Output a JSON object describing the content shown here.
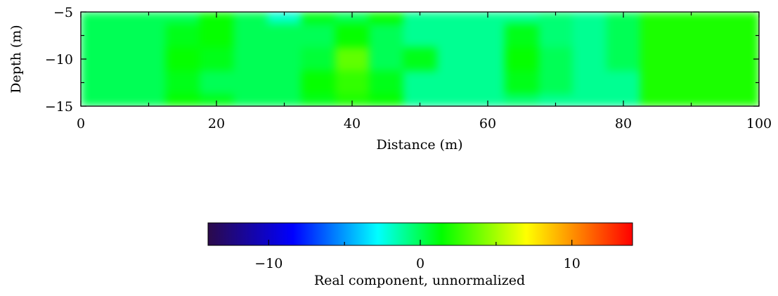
{
  "chart_data": [
    {
      "type": "heatmap",
      "xlabel": "Distance (m)",
      "ylabel": "Depth (m)",
      "xlim": [
        0,
        100
      ],
      "ylim": [
        -15,
        -5
      ],
      "xticks": [
        "0",
        "20",
        "40",
        "60",
        "80",
        "100"
      ],
      "yticks": [
        "-5",
        "-10",
        "-15"
      ],
      "x": [
        0,
        5,
        10,
        15,
        20,
        25,
        30,
        35,
        40,
        45,
        50,
        55,
        60,
        65,
        70,
        75,
        80,
        85,
        90,
        95,
        100
      ],
      "y": [
        -5,
        -7.5,
        -10,
        -12.5,
        -15
      ],
      "z": [
        [
          0,
          0,
          0,
          0,
          1.5,
          0,
          -2,
          1,
          0,
          1.5,
          -1,
          -1,
          -1,
          -1,
          -0.5,
          -1,
          0,
          2,
          2,
          2,
          2
        ],
        [
          0,
          0,
          0,
          1,
          1.5,
          0,
          0,
          0,
          1.5,
          0,
          -1,
          -1,
          -1,
          1,
          -0.5,
          -1,
          0,
          2,
          2,
          2,
          2
        ],
        [
          0,
          0,
          0,
          1.5,
          1,
          0,
          0,
          0.5,
          3.5,
          0,
          1,
          -1,
          -1,
          1.5,
          0,
          -1,
          0,
          2,
          2,
          2,
          2
        ],
        [
          0,
          0,
          0,
          1,
          0,
          0,
          0,
          1.5,
          2.5,
          1,
          -1,
          -1,
          -1,
          1,
          0,
          -1,
          -1,
          2,
          2,
          2,
          2
        ],
        [
          0,
          0,
          0,
          1.5,
          1,
          0,
          0,
          1,
          2,
          1.5,
          -1,
          -1,
          -1,
          -0.5,
          -1,
          -1,
          -1,
          2,
          2,
          2,
          2
        ]
      ]
    },
    {
      "type": "colorbar",
      "label": "Real component, unnormalized",
      "range": [
        -14,
        14
      ],
      "ticks": [
        "-10",
        "0",
        "10"
      ],
      "tick_values": [
        -10,
        0,
        10
      ],
      "colors": [
        "#2b0a4a",
        "#0000ff",
        "#00ffff",
        "#00ff00",
        "#ffff00",
        "#ff0000"
      ]
    }
  ]
}
